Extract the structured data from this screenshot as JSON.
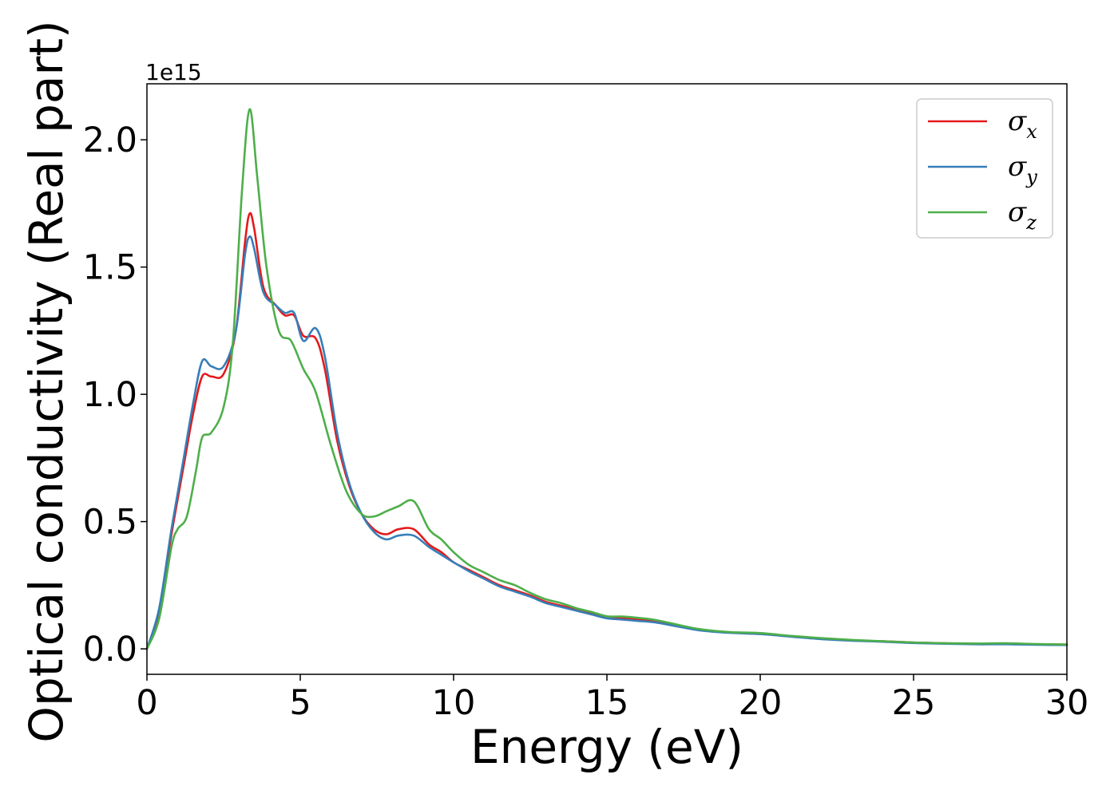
{
  "chart_data": {
    "type": "line",
    "xlabel": "Energy (eV)",
    "ylabel": "Optical conductivity (Real part)",
    "y_offset_label": "1e15",
    "xlim": [
      0,
      30
    ],
    "ylim": [
      -0.1,
      2.22
    ],
    "x_ticks": [
      0,
      5,
      10,
      15,
      20,
      25,
      30
    ],
    "x_tick_labels": [
      "0",
      "5",
      "10",
      "15",
      "20",
      "25",
      "30"
    ],
    "y_ticks": [
      0.0,
      0.5,
      1.0,
      1.5,
      2.0
    ],
    "y_tick_labels": [
      "0.0",
      "0.5",
      "1.0",
      "1.5",
      "2.0"
    ],
    "grid": false,
    "legend_position": "top-right",
    "series": [
      {
        "name": "σ_x",
        "legend_main": "σ",
        "legend_sub": "x",
        "color": "#e41a1c",
        "points": [
          [
            0,
            0.0
          ],
          [
            0.4,
            0.15
          ],
          [
            0.8,
            0.45
          ],
          [
            1.2,
            0.72
          ],
          [
            1.5,
            0.92
          ],
          [
            1.8,
            1.07
          ],
          [
            2.1,
            1.07
          ],
          [
            2.5,
            1.08
          ],
          [
            2.9,
            1.25
          ],
          [
            3.2,
            1.6
          ],
          [
            3.35,
            1.71
          ],
          [
            3.5,
            1.65
          ],
          [
            3.8,
            1.42
          ],
          [
            4.2,
            1.35
          ],
          [
            4.5,
            1.31
          ],
          [
            4.8,
            1.31
          ],
          [
            5.1,
            1.23
          ],
          [
            5.5,
            1.22
          ],
          [
            5.8,
            1.1
          ],
          [
            6.2,
            0.82
          ],
          [
            6.6,
            0.64
          ],
          [
            7.0,
            0.53
          ],
          [
            7.4,
            0.47
          ],
          [
            7.8,
            0.45
          ],
          [
            8.2,
            0.47
          ],
          [
            8.7,
            0.47
          ],
          [
            9.2,
            0.41
          ],
          [
            9.6,
            0.38
          ],
          [
            10.0,
            0.34
          ],
          [
            10.5,
            0.31
          ],
          [
            11.0,
            0.28
          ],
          [
            11.5,
            0.25
          ],
          [
            12.0,
            0.23
          ],
          [
            12.5,
            0.21
          ],
          [
            13.0,
            0.185
          ],
          [
            13.5,
            0.17
          ],
          [
            14.0,
            0.155
          ],
          [
            14.5,
            0.14
          ],
          [
            15.0,
            0.125
          ],
          [
            15.5,
            0.12
          ],
          [
            16.0,
            0.115
          ],
          [
            16.5,
            0.11
          ],
          [
            17.0,
            0.1
          ],
          [
            18.0,
            0.075
          ],
          [
            19.0,
            0.065
          ],
          [
            20.0,
            0.06
          ],
          [
            21.0,
            0.05
          ],
          [
            22.0,
            0.04
          ],
          [
            23.0,
            0.033
          ],
          [
            24.0,
            0.03
          ],
          [
            25.0,
            0.025
          ],
          [
            26.0,
            0.022
          ],
          [
            27.0,
            0.02
          ],
          [
            28.0,
            0.02
          ],
          [
            29.0,
            0.018
          ],
          [
            30.0,
            0.017
          ]
        ]
      },
      {
        "name": "σ_y",
        "legend_main": "σ",
        "legend_sub": "y",
        "color": "#377eb8",
        "points": [
          [
            0,
            0.0
          ],
          [
            0.4,
            0.16
          ],
          [
            0.8,
            0.47
          ],
          [
            1.2,
            0.75
          ],
          [
            1.5,
            0.96
          ],
          [
            1.8,
            1.13
          ],
          [
            2.1,
            1.11
          ],
          [
            2.5,
            1.11
          ],
          [
            2.9,
            1.25
          ],
          [
            3.2,
            1.55
          ],
          [
            3.35,
            1.62
          ],
          [
            3.5,
            1.57
          ],
          [
            3.8,
            1.4
          ],
          [
            4.2,
            1.35
          ],
          [
            4.5,
            1.32
          ],
          [
            4.8,
            1.32
          ],
          [
            5.1,
            1.21
          ],
          [
            5.5,
            1.26
          ],
          [
            5.8,
            1.15
          ],
          [
            6.2,
            0.85
          ],
          [
            6.6,
            0.65
          ],
          [
            7.0,
            0.53
          ],
          [
            7.4,
            0.46
          ],
          [
            7.8,
            0.43
          ],
          [
            8.2,
            0.445
          ],
          [
            8.7,
            0.445
          ],
          [
            9.2,
            0.4
          ],
          [
            9.6,
            0.37
          ],
          [
            10.0,
            0.34
          ],
          [
            10.5,
            0.305
          ],
          [
            11.0,
            0.275
          ],
          [
            11.5,
            0.245
          ],
          [
            12.0,
            0.225
          ],
          [
            12.5,
            0.205
          ],
          [
            13.0,
            0.18
          ],
          [
            13.5,
            0.165
          ],
          [
            14.0,
            0.15
          ],
          [
            14.5,
            0.135
          ],
          [
            15.0,
            0.12
          ],
          [
            15.5,
            0.115
          ],
          [
            16.0,
            0.11
          ],
          [
            16.5,
            0.105
          ],
          [
            17.0,
            0.095
          ],
          [
            18.0,
            0.073
          ],
          [
            19.0,
            0.063
          ],
          [
            20.0,
            0.058
          ],
          [
            21.0,
            0.048
          ],
          [
            22.0,
            0.038
          ],
          [
            23.0,
            0.032
          ],
          [
            24.0,
            0.028
          ],
          [
            25.0,
            0.023
          ],
          [
            26.0,
            0.02
          ],
          [
            27.0,
            0.018
          ],
          [
            28.0,
            0.018
          ],
          [
            29.0,
            0.016
          ],
          [
            30.0,
            0.015
          ]
        ]
      },
      {
        "name": "σ_z",
        "legend_main": "σ",
        "legend_sub": "z",
        "color": "#4daf4a",
        "points": [
          [
            0,
            0.0
          ],
          [
            0.4,
            0.12
          ],
          [
            0.8,
            0.4
          ],
          [
            1.0,
            0.47
          ],
          [
            1.3,
            0.52
          ],
          [
            1.6,
            0.7
          ],
          [
            1.8,
            0.83
          ],
          [
            2.1,
            0.85
          ],
          [
            2.5,
            0.95
          ],
          [
            2.8,
            1.2
          ],
          [
            3.1,
            1.8
          ],
          [
            3.35,
            2.12
          ],
          [
            3.6,
            1.85
          ],
          [
            3.9,
            1.5
          ],
          [
            4.3,
            1.25
          ],
          [
            4.7,
            1.21
          ],
          [
            5.1,
            1.1
          ],
          [
            5.5,
            1.01
          ],
          [
            6.0,
            0.8
          ],
          [
            6.5,
            0.62
          ],
          [
            7.0,
            0.53
          ],
          [
            7.4,
            0.52
          ],
          [
            7.8,
            0.54
          ],
          [
            8.2,
            0.56
          ],
          [
            8.7,
            0.58
          ],
          [
            9.2,
            0.47
          ],
          [
            9.6,
            0.43
          ],
          [
            10.0,
            0.38
          ],
          [
            10.5,
            0.33
          ],
          [
            11.0,
            0.3
          ],
          [
            11.5,
            0.27
          ],
          [
            12.0,
            0.25
          ],
          [
            12.5,
            0.22
          ],
          [
            13.0,
            0.195
          ],
          [
            13.5,
            0.18
          ],
          [
            14.0,
            0.16
          ],
          [
            14.5,
            0.145
          ],
          [
            15.0,
            0.128
          ],
          [
            15.5,
            0.127
          ],
          [
            16.0,
            0.122
          ],
          [
            16.5,
            0.115
          ],
          [
            17.0,
            0.103
          ],
          [
            18.0,
            0.078
          ],
          [
            19.0,
            0.066
          ],
          [
            20.0,
            0.062
          ],
          [
            21.0,
            0.051
          ],
          [
            22.0,
            0.042
          ],
          [
            23.0,
            0.035
          ],
          [
            24.0,
            0.03
          ],
          [
            25.0,
            0.025
          ],
          [
            26.0,
            0.022
          ],
          [
            27.0,
            0.021
          ],
          [
            28.0,
            0.022
          ],
          [
            29.0,
            0.019
          ],
          [
            30.0,
            0.017
          ]
        ]
      }
    ]
  }
}
